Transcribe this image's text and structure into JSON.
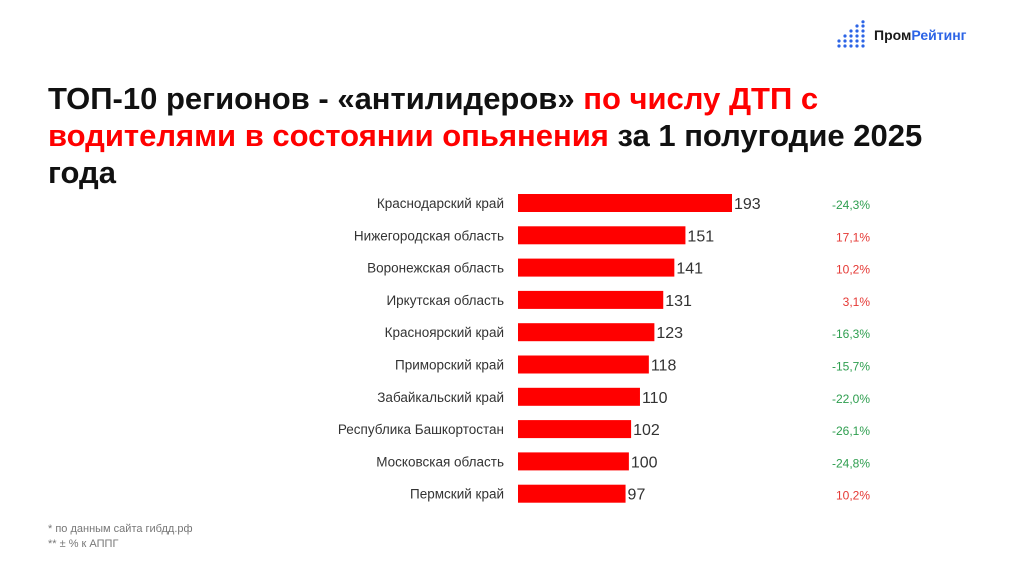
{
  "brand": {
    "name_part1": "Пром",
    "name_part2": "Рейтинг",
    "accent_color": "#2c64e6",
    "icon": "dot-matrix-logo-icon"
  },
  "title": {
    "part1": "ТОП-10 регионов - «антилидеров» ",
    "part2": "по числу ДТП с водителями в состоянии опьянения",
    "part3": " за 1 полугодие 2025 года",
    "highlight_color": "#ff0000"
  },
  "chart_data": {
    "type": "bar",
    "orientation": "horizontal",
    "categories": [
      "Краснодарский край",
      "Нижегородская область",
      "Воронежская область",
      "Иркутская область",
      "Красноярский край",
      "Приморский край",
      "Забайкальский край",
      "Республика Башкортостан",
      "Московская область",
      "Пермский край"
    ],
    "values": [
      193,
      151,
      141,
      131,
      123,
      118,
      110,
      102,
      100,
      97
    ],
    "changes": [
      "-24,3%",
      "17,1%",
      "10,2%",
      "3,1%",
      "-16,3%",
      "-15,7%",
      "-22,0%",
      "-26,1%",
      "-24,8%",
      "10,2%"
    ],
    "bar_color": "#ff0000",
    "change_colors": {
      "negative": "#2e9e4f",
      "positive": "#e53935"
    }
  },
  "footnotes": [
    "* по данным сайта гибдд.рф",
    "** ± % к АППГ"
  ]
}
